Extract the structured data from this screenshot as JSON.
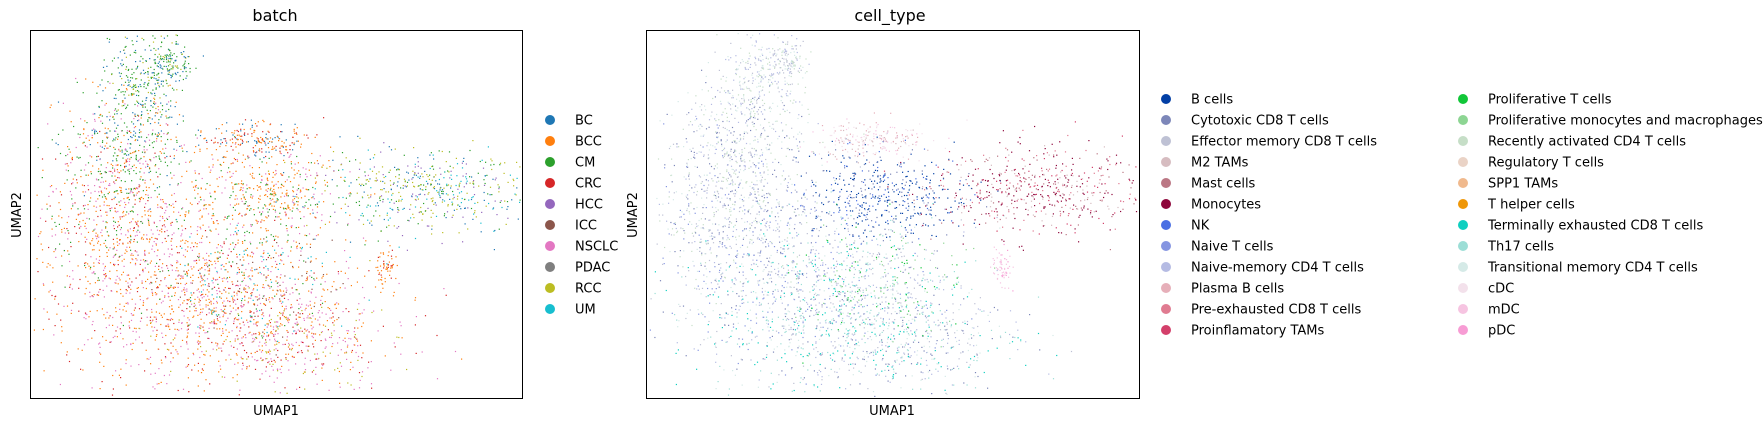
{
  "chart_data": [
    {
      "type": "scatter",
      "title": "batch",
      "xlabel": "UMAP1",
      "ylabel": "UMAP2",
      "xticks": [],
      "yticks": [],
      "legend_position": "right",
      "legend_columns": 1,
      "series": [
        {
          "name": "BC",
          "color": "#1f77b4"
        },
        {
          "name": "BCC",
          "color": "#ff7f0e"
        },
        {
          "name": "CM",
          "color": "#2ca02c"
        },
        {
          "name": "CRC",
          "color": "#d62728"
        },
        {
          "name": "HCC",
          "color": "#9467bd"
        },
        {
          "name": "ICC",
          "color": "#8c564b"
        },
        {
          "name": "NSCLC",
          "color": "#e377c2"
        },
        {
          "name": "PDAC",
          "color": "#7f7f7f"
        },
        {
          "name": "RCC",
          "color": "#bcbd22"
        },
        {
          "name": "UM",
          "color": "#17becf"
        }
      ]
    },
    {
      "type": "scatter",
      "title": "cell_type",
      "xlabel": "UMAP1",
      "ylabel": "UMAP2",
      "xticks": [],
      "yticks": [],
      "legend_position": "right",
      "legend_columns": 2,
      "series": [
        {
          "name": "B cells",
          "color": "#023fa5"
        },
        {
          "name": "Cytotoxic CD8 T cells",
          "color": "#7d87b9"
        },
        {
          "name": "Effector memory CD8 T cells",
          "color": "#bec1d4"
        },
        {
          "name": "M2 TAMs",
          "color": "#d6bcc0"
        },
        {
          "name": "Mast cells",
          "color": "#bb7784"
        },
        {
          "name": "Monocytes",
          "color": "#8e063b"
        },
        {
          "name": "NK",
          "color": "#4a6fe3"
        },
        {
          "name": "Naive T cells",
          "color": "#8595e1"
        },
        {
          "name": "Naive-memory CD4 T cells",
          "color": "#b5bbe3"
        },
        {
          "name": "Plasma B cells",
          "color": "#e6afb9"
        },
        {
          "name": "Pre-exhausted CD8 T cells",
          "color": "#e07b91"
        },
        {
          "name": "Proinflamatory TAMs",
          "color": "#d33f6a"
        },
        {
          "name": "Proliferative T cells",
          "color": "#11c638"
        },
        {
          "name": "Proliferative monocytes and macrophages",
          "color": "#8dd593"
        },
        {
          "name": "Recently activated CD4 T cells",
          "color": "#c6dec7"
        },
        {
          "name": "Regulatory T cells",
          "color": "#ead3c6"
        },
        {
          "name": "SPP1 TAMs",
          "color": "#f0b98d"
        },
        {
          "name": "T helper cells",
          "color": "#ef9708"
        },
        {
          "name": "Terminally exhausted CD8 T cells",
          "color": "#0fcfc0"
        },
        {
          "name": "Th17 cells",
          "color": "#9cded6"
        },
        {
          "name": "Transitional memory CD4 T cells",
          "color": "#d5eae7"
        },
        {
          "name": "cDC",
          "color": "#f3e1eb"
        },
        {
          "name": "mDC",
          "color": "#f6c4e1"
        },
        {
          "name": "pDC",
          "color": "#f79cd4"
        }
      ]
    }
  ]
}
